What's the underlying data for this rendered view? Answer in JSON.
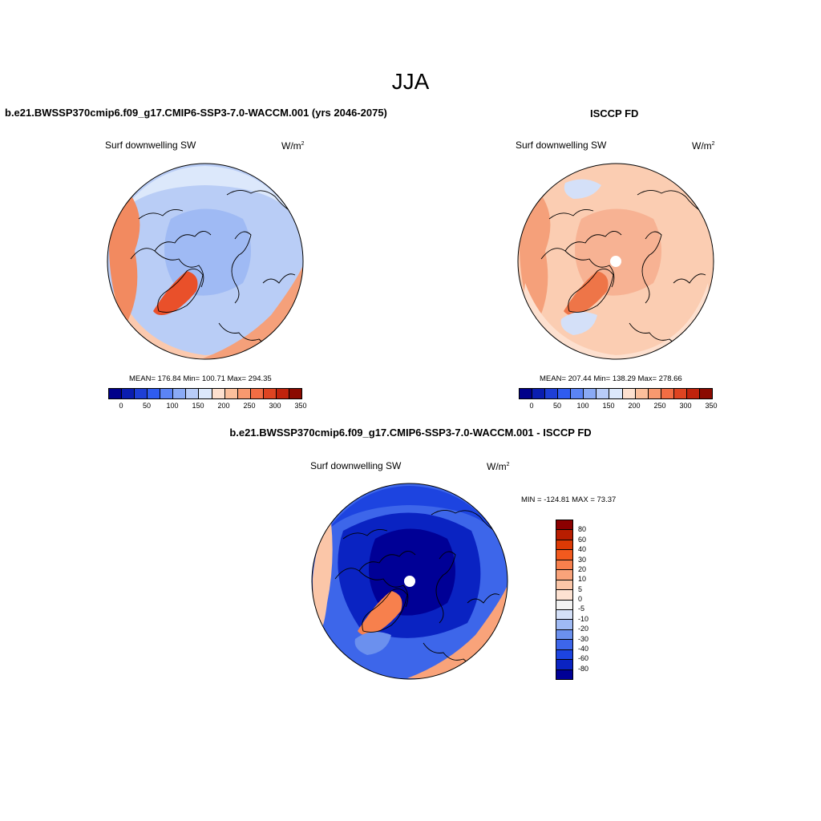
{
  "figure": {
    "title": "JJA",
    "units_base": "W/m",
    "units_exp": "2"
  },
  "panels": {
    "model": {
      "title": "b.e21.BWSSP370cmip6.f09_g17.CMIP6-SSP3-7.0-WACCM.001 (yrs 2046-2075)",
      "variable": "Surf downwelling SW",
      "stats": "MEAN= 176.84  Min= 100.71  Max= 294.35"
    },
    "obs": {
      "title": "ISCCP FD",
      "variable": "Surf downwelling SW",
      "stats": "MEAN= 207.44  Min= 138.29  Max= 278.66"
    },
    "diff": {
      "title": "b.e21.BWSSP370cmip6.f09_g17.CMIP6-SSP3-7.0-WACCM.001 - ISCCP FD",
      "variable": "Surf downwelling SW",
      "stats": "MIN = -124.81 MAX =  73.37"
    }
  },
  "colorbars": {
    "abs": {
      "colors": [
        "#00008a",
        "#0a1db0",
        "#1e3fd6",
        "#2f5cf0",
        "#5b84f5",
        "#8aaaf5",
        "#b8ccf8",
        "#dce8fb",
        "#fde0cf",
        "#fbbf9c",
        "#f8996f",
        "#f26d44",
        "#de4421",
        "#c0230c",
        "#8b0a00"
      ],
      "labels": [
        "0",
        "50",
        "100",
        "150",
        "200",
        "250",
        "300",
        "350"
      ]
    },
    "diff": {
      "colors_top_to_bottom": [
        "#8b0000",
        "#b81d00",
        "#dc3a05",
        "#f25a1e",
        "#f7804d",
        "#f9a37a",
        "#fbc6a8",
        "#fde2d2",
        "#f2f2f2",
        "#d4e0f8",
        "#9fbaf4",
        "#6b90ee",
        "#3d66ea",
        "#1d44e0",
        "#0a23c2",
        "#000096"
      ],
      "labels": [
        "80",
        "60",
        "40",
        "30",
        "20",
        "10",
        "5",
        "0",
        "-5",
        "-10",
        "-20",
        "-30",
        "-40",
        "-60",
        "-80"
      ]
    }
  },
  "map_fields": {
    "model": {
      "background": "#b9cdf6",
      "blobs": [
        {
          "color": "#fbc9ae",
          "shape": "ring-s"
        },
        {
          "color": "#dce8fb",
          "shape": "ring-n"
        },
        {
          "color": "#9fbaf4",
          "shape": "center"
        },
        {
          "color": "#f28a60",
          "shape": "west"
        },
        {
          "color": "#e9502a",
          "shape": "greenland"
        },
        {
          "color": "#f5a07a",
          "shape": "southeast"
        }
      ]
    },
    "obs": {
      "background": "#fbcdb2",
      "blobs": [
        {
          "color": "#f7b293",
          "shape": "center"
        },
        {
          "color": "#f5a07a",
          "shape": "west"
        },
        {
          "color": "#ee7548",
          "shape": "greenland"
        },
        {
          "color": "#d4e0f8",
          "shape": "north-small"
        },
        {
          "color": "#d4e0f8",
          "shape": "south-small"
        },
        {
          "color": "#fde0cf",
          "shape": "ring-s"
        }
      ],
      "pole_hole": true
    },
    "diff": {
      "background": "#3d66ea",
      "blobs": [
        {
          "color": "#1d44e0",
          "shape": "ring-n"
        },
        {
          "color": "#0a23c2",
          "shape": "center-big"
        },
        {
          "color": "#000096",
          "shape": "center"
        },
        {
          "color": "#f7804d",
          "shape": "greenland"
        },
        {
          "color": "#f9a37a",
          "shape": "southeast"
        },
        {
          "color": "#fbc6a8",
          "shape": "west-edge"
        },
        {
          "color": "#6b90ee",
          "shape": "south-small"
        }
      ],
      "pole_hole": true
    }
  }
}
